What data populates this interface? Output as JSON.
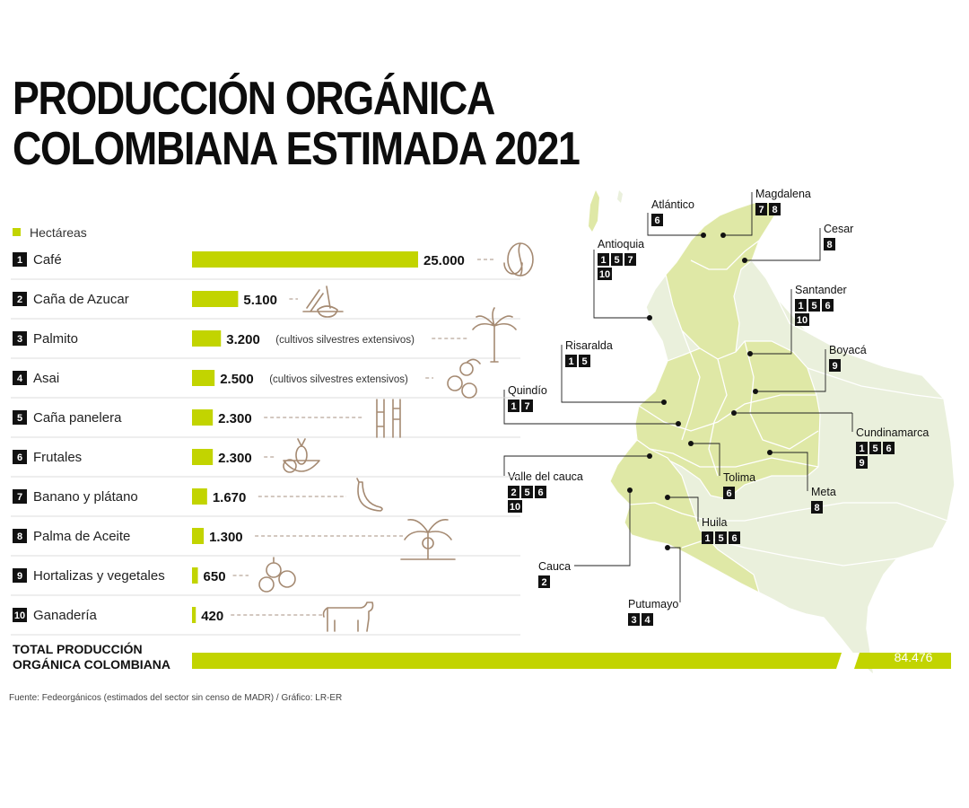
{
  "title": {
    "line1": "PRODUCCIÓN ORGÁNICA",
    "line2": "COLOMBIANA ESTIMADA  2021"
  },
  "colors": {
    "accent": "#c2d400",
    "map_highlight": "#dfe8a6",
    "map_base": "#eaf0dc",
    "map_border": "#ffffff",
    "icon": "#a58a72",
    "leader": "#b9a89a"
  },
  "legend": {
    "label": "Hectáreas"
  },
  "chart_data": {
    "type": "bar",
    "categories": [
      "Café",
      "Caña de Azucar",
      "Palmito",
      "Asai",
      "Caña panelera",
      "Frutales",
      "Banano y plátano",
      "Palma de Aceite",
      "Hortalizas y vegetales",
      "Ganadería"
    ],
    "ranks": [
      "1",
      "2",
      "3",
      "4",
      "5",
      "6",
      "7",
      "8",
      "9",
      "10"
    ],
    "values": [
      25000,
      5100,
      3200,
      2500,
      2300,
      2300,
      1670,
      1300,
      650,
      420
    ],
    "value_labels": [
      "25.000",
      "5.100",
      "3.200",
      "2.500",
      "2.300",
      "2.300",
      "1.670",
      "1.300",
      "650",
      "420"
    ],
    "notes": [
      "",
      "",
      "(cultivos silvestres extensivos)",
      "(cultivos silvestres extensivos)",
      "",
      "",
      "",
      "",
      "",
      ""
    ],
    "icons": [
      "coffee-bean-icon",
      "sugarcane-icon",
      "palm-tree-icon",
      "berries-icon",
      "bamboo-cane-icon",
      "fruit-bowl-icon",
      "banana-icon",
      "oil-palm-icon",
      "vegetables-icon",
      "cow-icon"
    ],
    "series": [
      {
        "name": "Hectáreas",
        "values": [
          25000,
          5100,
          3200,
          2500,
          2300,
          2300,
          1670,
          1300,
          650,
          420
        ]
      }
    ],
    "total": {
      "label_line1": "TOTAL PRODUCCIÓN",
      "label_line2": "ORGÁNICA COLOMBIANA",
      "value": 84476,
      "value_label": "84.476"
    }
  },
  "map": {
    "departments": [
      {
        "name": "Atlántico",
        "codes": [
          "6"
        ]
      },
      {
        "name": "Magdalena",
        "codes": [
          "7",
          "8"
        ]
      },
      {
        "name": "Cesar",
        "codes": [
          "8"
        ]
      },
      {
        "name": "Antioquia",
        "codes": [
          "1",
          "5",
          "7",
          "10"
        ]
      },
      {
        "name": "Santander",
        "codes": [
          "1",
          "5",
          "6",
          "10"
        ]
      },
      {
        "name": "Boyacá",
        "codes": [
          "9"
        ]
      },
      {
        "name": "Risaralda",
        "codes": [
          "1",
          "5"
        ]
      },
      {
        "name": "Quindío",
        "codes": [
          "1",
          "7"
        ]
      },
      {
        "name": "Cundinamarca",
        "codes": [
          "1",
          "5",
          "6",
          "9"
        ]
      },
      {
        "name": "Valle del cauca",
        "codes": [
          "2",
          "5",
          "6",
          "10"
        ]
      },
      {
        "name": "Tolima",
        "codes": [
          "6"
        ]
      },
      {
        "name": "Meta",
        "codes": [
          "8"
        ]
      },
      {
        "name": "Huila",
        "codes": [
          "1",
          "5",
          "6"
        ]
      },
      {
        "name": "Cauca",
        "codes": [
          "2"
        ]
      },
      {
        "name": "Putumayo",
        "codes": [
          "3",
          "4"
        ]
      }
    ]
  },
  "source": "Fuente: Fedeorgánicos (estimados del sector sin  censo de MADR) / Gráfico: LR-ER"
}
